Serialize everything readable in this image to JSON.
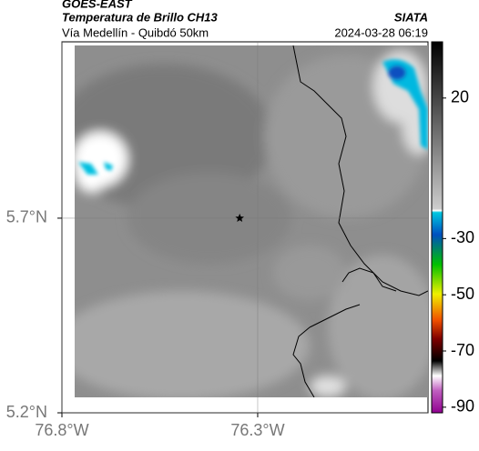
{
  "header": {
    "title": "GOES-EAST",
    "subtitle": "Temperatura de Brillo CH13",
    "region": "Vía Medellín - Quibdó 50km",
    "source": "SIATA",
    "timestamp": "2024-03-28 06:19"
  },
  "map": {
    "xlim": [
      -76.8,
      -75.865
    ],
    "ylim": [
      5.2,
      6.153
    ],
    "xticks": [
      {
        "value": -76.8,
        "label": "76.8°W"
      },
      {
        "value": -76.3,
        "label": "76.3°W"
      }
    ],
    "yticks": [
      {
        "value": 5.7,
        "label": "5.7°N"
      },
      {
        "value": 5.2,
        "label": "5.2°N"
      }
    ],
    "grid": true,
    "marker": {
      "lon": -76.346,
      "lat": 5.7
    }
  },
  "colorbar": {
    "clim": [
      -92,
      40
    ],
    "ticks": [
      20,
      -30,
      -50,
      -70,
      -90
    ]
  }
}
